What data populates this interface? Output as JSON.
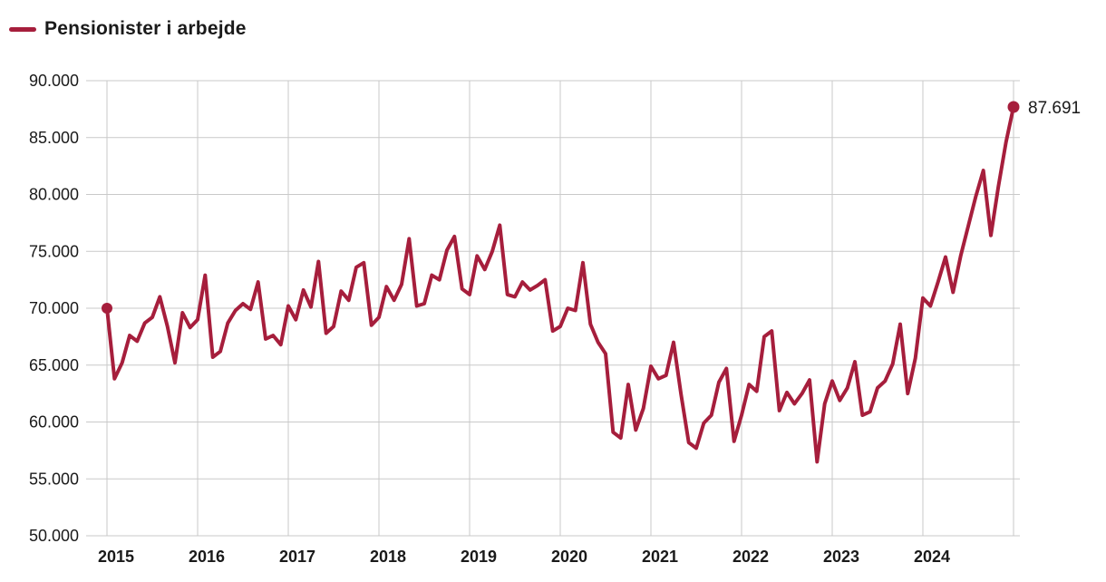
{
  "legend": {
    "label": "Pensionister i arbejde",
    "color": "#A61E3C"
  },
  "chart_data": {
    "type": "line",
    "title": "Pensionister i arbejde",
    "series_name": "Pensionister i arbejde",
    "frequency": "monthly",
    "start_year": 2015,
    "x_tick_labels": [
      "2015",
      "2016",
      "2017",
      "2018",
      "2019",
      "2020",
      "2021",
      "2022",
      "2023",
      "2024"
    ],
    "y_tick_labels": [
      "90.000",
      "85.000",
      "80.000",
      "75.000",
      "70.000",
      "65.000",
      "60.000",
      "55.000",
      "50.000"
    ],
    "ylim": [
      50000,
      90000
    ],
    "grid": true,
    "line_color": "#A61E3C",
    "grid_color": "#c9c9c9",
    "end_label": "87.691",
    "start_value": 70000,
    "end_value": 87691,
    "values": [
      70000,
      63800,
      65200,
      67600,
      67100,
      68700,
      69200,
      71000,
      68400,
      65200,
      69600,
      68300,
      69000,
      72900,
      65700,
      66200,
      68700,
      69800,
      70400,
      69900,
      72300,
      67300,
      67600,
      66800,
      70200,
      69000,
      71600,
      70100,
      74100,
      67800,
      68400,
      71500,
      70700,
      73600,
      74000,
      68500,
      69200,
      71900,
      70700,
      72100,
      76100,
      70200,
      70400,
      72900,
      72500,
      75100,
      76300,
      71700,
      71200,
      74600,
      73400,
      75000,
      77300,
      71200,
      71000,
      72300,
      71600,
      72000,
      72500,
      68000,
      68400,
      70000,
      69800,
      74000,
      68600,
      67000,
      66000,
      59100,
      58600,
      63300,
      59300,
      61200,
      64900,
      63800,
      64100,
      67000,
      62400,
      58200,
      57700,
      59900,
      60600,
      63500,
      64700,
      58300,
      60600,
      63300,
      62700,
      67500,
      68000,
      61000,
      62600,
      61600,
      62500,
      63700,
      56500,
      61600,
      63600,
      61900,
      63000,
      65300,
      60600,
      60900,
      63000,
      63600,
      65100,
      68600,
      62500,
      65600,
      70900,
      70200,
      72300,
      74500,
      71400,
      74600,
      77200,
      79800,
      82100,
      76400,
      80700,
      84600,
      87691
    ]
  }
}
